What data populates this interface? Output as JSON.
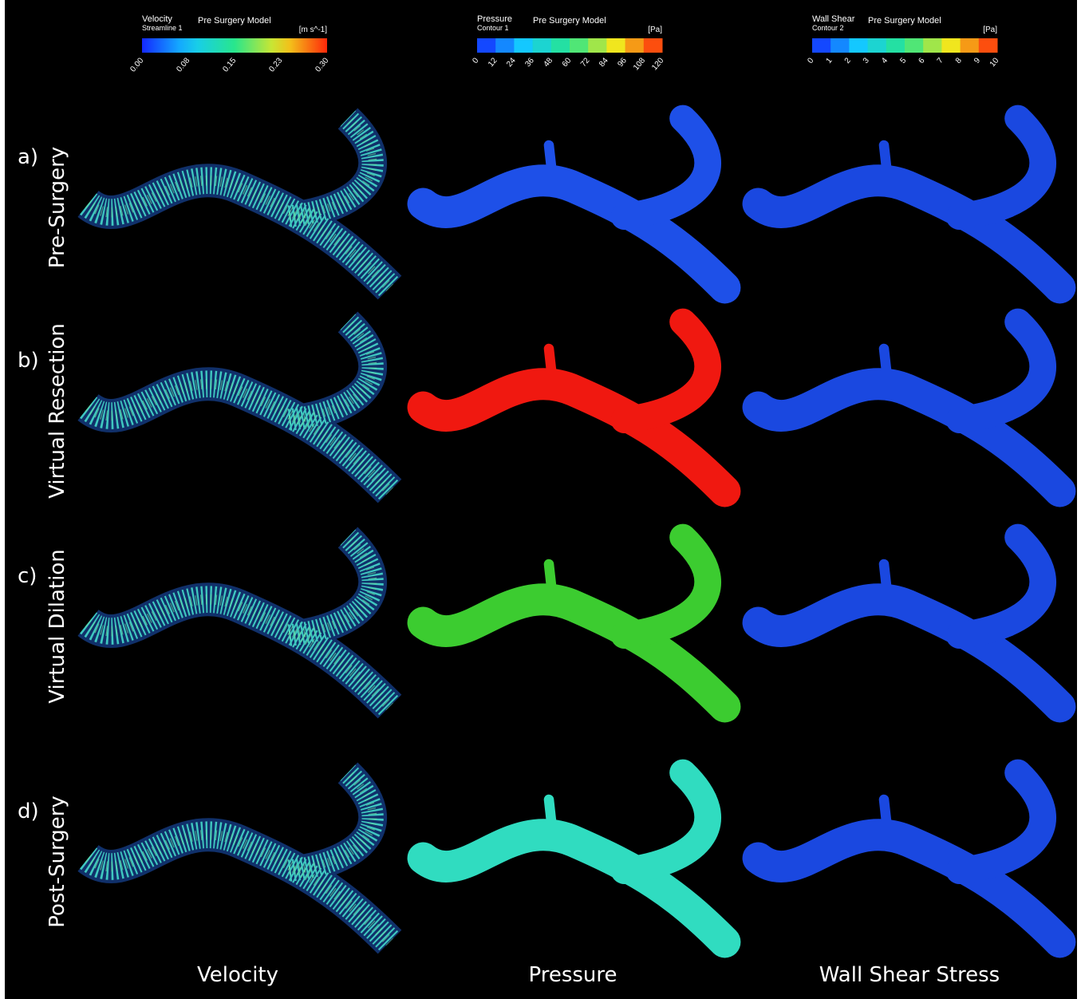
{
  "legends": [
    {
      "title": "Velocity",
      "subtitle": "Streamline 1",
      "model": "Pre Surgery Model",
      "unit": "[m s^-1]",
      "ticks": [
        "0.00",
        "0.08",
        "0.15",
        "0.23",
        "0.30"
      ]
    },
    {
      "title": "Pressure",
      "subtitle": "Contour 1",
      "model": "Pre Surgery Model",
      "unit": "[Pa]",
      "ticks": [
        "0",
        "12",
        "24",
        "36",
        "48",
        "60",
        "72",
        "84",
        "96",
        "108",
        "120"
      ]
    },
    {
      "title": "Wall Shear",
      "subtitle": "Contour 2",
      "model": "Pre Surgery Model",
      "unit": "[Pa]",
      "ticks": [
        "0",
        "1",
        "2",
        "3",
        "4",
        "5",
        "6",
        "7",
        "8",
        "9",
        "10"
      ]
    }
  ],
  "rows": [
    {
      "letter": "a)",
      "label": "Pre-Surgery"
    },
    {
      "letter": "b)",
      "label": "Virtual Resection"
    },
    {
      "letter": "c)",
      "label": "Virtual Dilation"
    },
    {
      "letter": "d)",
      "label": "Post-Surgery"
    }
  ],
  "columns": [
    "Velocity",
    "Pressure",
    "Wall Shear Stress"
  ]
}
